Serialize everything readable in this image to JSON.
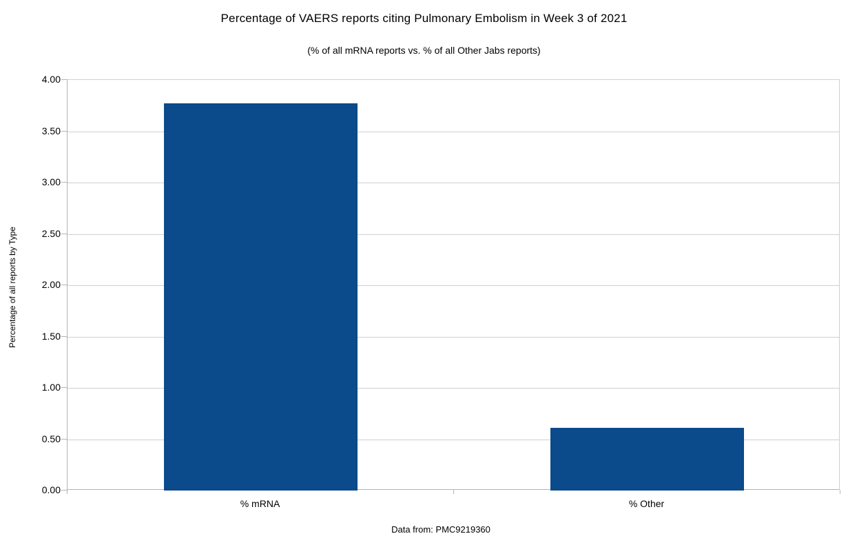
{
  "chart_data": {
    "type": "bar",
    "title": "Percentage of VAERS reports citing Pulmonary Embolism in Week 3 of 2021",
    "subtitle": "(% of all mRNA reports vs. % of all Other Jabs reports)",
    "categories": [
      "% mRNA",
      "% Other"
    ],
    "values": [
      3.77,
      0.61
    ],
    "xlabel": "",
    "ylabel": "Percentage of all reports by Type",
    "ylim": [
      0,
      4
    ],
    "ytick_step": 0.5,
    "ytick_labels": [
      "0.00",
      "0.50",
      "1.00",
      "1.50",
      "2.00",
      "2.50",
      "3.00",
      "3.50",
      "4.00"
    ],
    "grid": true,
    "legend": "none",
    "annotation": "Data from: PMC9219360",
    "colors": {
      "bar": "#0b4a8b",
      "grid": "#cfcfcf",
      "axis": "#b3b3b3",
      "text": "#000000",
      "background": "#ffffff"
    }
  }
}
